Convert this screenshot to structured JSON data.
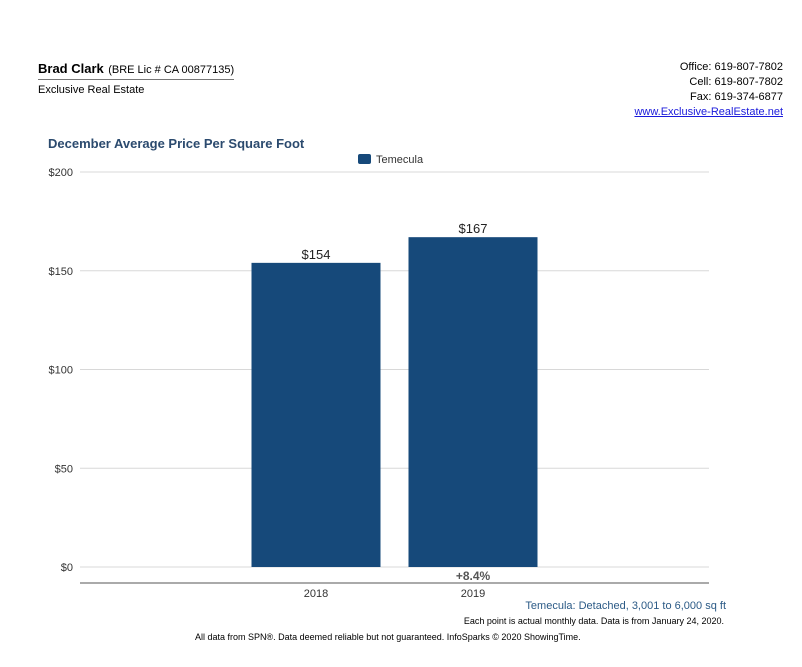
{
  "agent": {
    "name": "Brad Clark",
    "license": "(BRE Lic # CA 00877135)",
    "company": "Exclusive Real Estate"
  },
  "contact": {
    "office": "Office: 619-807-7802",
    "cell": "Cell: 619-807-7802",
    "fax": "Fax: 619-374-6877",
    "website": "www.Exclusive-RealEstate.net"
  },
  "chart_data": {
    "type": "bar",
    "title": "December Average Price Per Square Foot",
    "categories": [
      "2018",
      "2019"
    ],
    "series": [
      {
        "name": "Temecula",
        "values": [
          154,
          167
        ],
        "color": "#16497a"
      }
    ],
    "data_labels": [
      "$154",
      "$167"
    ],
    "ylim": [
      0,
      200
    ],
    "yticks": [
      0,
      50,
      100,
      150,
      200
    ],
    "ytick_labels": [
      "$0",
      "$50",
      "$100",
      "$150",
      "$200"
    ],
    "grid": true,
    "legend": "top-center",
    "change_label": "+8.4%"
  },
  "notes": {
    "subtitle": "Temecula: Detached, 3,001 to 6,000 sq ft",
    "data_note": "Each point is actual monthly data. Data is from January 24, 2020.",
    "disclaimer": "All data from SPN®. Data deemed reliable but not guaranteed. InfoSparks © 2020 ShowingTime."
  }
}
